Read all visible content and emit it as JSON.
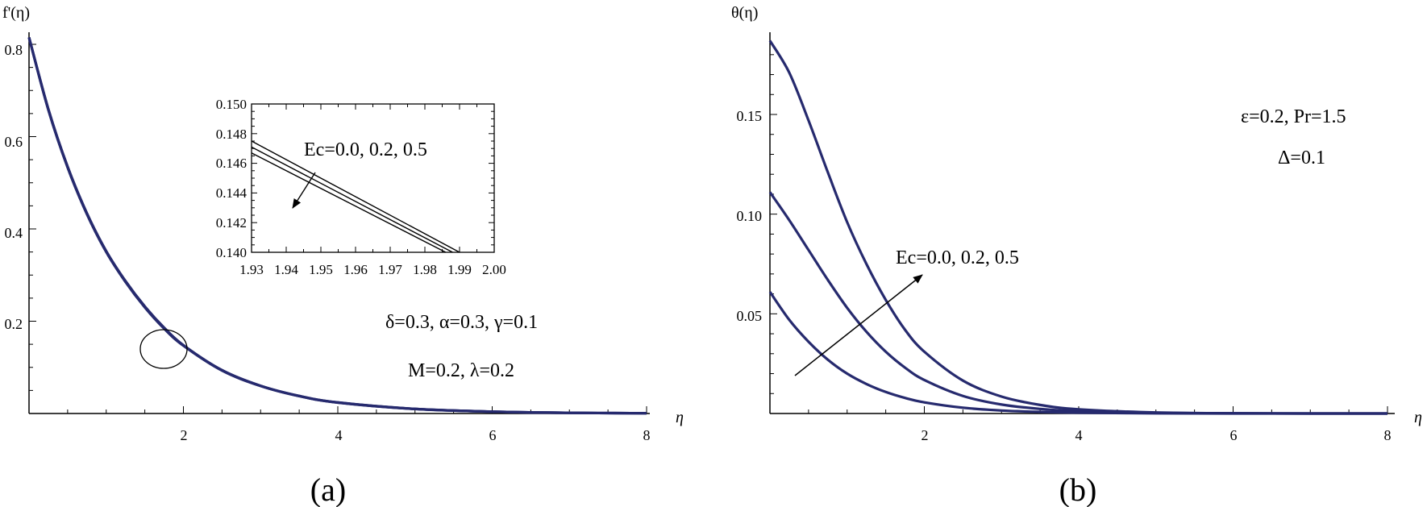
{
  "chart_data": [
    {
      "type": "line",
      "panel_label": "(a)",
      "ylabel": "f'(η)",
      "xlabel": "η",
      "xlim": [
        0,
        8
      ],
      "ylim": [
        0,
        0.83
      ],
      "x_ticks": [
        "2",
        "4",
        "6",
        "8"
      ],
      "y_ticks": [
        "0.2",
        "0.4",
        "0.6",
        "0.8"
      ],
      "series": [
        {
          "x": [
            0,
            0.25,
            0.5,
            0.75,
            1,
            1.25,
            1.5,
            1.75,
            2,
            2.5,
            3,
            3.5,
            4,
            5,
            6,
            7,
            8
          ],
          "y": [
            0.815,
            0.66,
            0.535,
            0.434,
            0.352,
            0.287,
            0.232,
            0.186,
            0.148,
            0.094,
            0.06,
            0.038,
            0.024,
            0.01,
            0.004,
            0.0015,
            0.0005
          ]
        },
        {
          "x": [
            0,
            0.25,
            0.5,
            0.75,
            1,
            1.25,
            1.5,
            1.75,
            2,
            2.5,
            3,
            3.5,
            4,
            5,
            6,
            7,
            8
          ],
          "y": [
            0.815,
            0.659,
            0.534,
            0.433,
            0.351,
            0.286,
            0.231,
            0.185,
            0.1475,
            0.0935,
            0.0598,
            0.0378,
            0.0238,
            0.0099,
            0.004,
            0.0015,
            0.0005
          ]
        },
        {
          "x": [
            0,
            0.25,
            0.5,
            0.75,
            1,
            1.25,
            1.5,
            1.75,
            2,
            2.5,
            3,
            3.5,
            4,
            5,
            6,
            7,
            8
          ],
          "y": [
            0.815,
            0.658,
            0.533,
            0.432,
            0.35,
            0.285,
            0.23,
            0.184,
            0.147,
            0.093,
            0.0596,
            0.0376,
            0.0236,
            0.0098,
            0.004,
            0.0015,
            0.0005
          ]
        }
      ],
      "annotations": [
        "δ=0.3, α=0.3, γ=0.1",
        "M=0.2, λ=0.2"
      ],
      "inset": {
        "xlim": [
          1.93,
          2.0
        ],
        "ylim": [
          0.14,
          0.15
        ],
        "x_ticks": [
          "1.93",
          "1.94",
          "1.95",
          "1.96",
          "1.97",
          "1.98",
          "1.99",
          "2.00"
        ],
        "y_ticks": [
          "0.140",
          "0.142",
          "0.144",
          "0.146",
          "0.148",
          "0.150"
        ],
        "label": "Ec=0.0, 0.2, 0.5",
        "series": [
          {
            "name": "Ec=0.0",
            "x": [
              1.93,
              1.99
            ],
            "y": [
              0.1475,
              0.14
            ]
          },
          {
            "name": "Ec=0.2",
            "x": [
              1.93,
              1.988
            ],
            "y": [
              0.1471,
              0.14
            ]
          },
          {
            "name": "Ec=0.5",
            "x": [
              1.93,
              1.986
            ],
            "y": [
              0.1467,
              0.14
            ]
          }
        ]
      }
    },
    {
      "type": "line",
      "panel_label": "(b)",
      "ylabel": "θ(η)",
      "xlabel": "η",
      "xlim": [
        0,
        8
      ],
      "ylim": [
        0,
        0.19
      ],
      "x_ticks": [
        "2",
        "4",
        "6",
        "8"
      ],
      "y_ticks": [
        "0.05",
        "0.10",
        "0.15"
      ],
      "series": [
        {
          "name": "Ec=0.0",
          "x": [
            0,
            0.25,
            0.5,
            0.75,
            1,
            1.25,
            1.5,
            1.75,
            2,
            2.5,
            3,
            3.5,
            4,
            5,
            6,
            7,
            8
          ],
          "y": [
            0.061,
            0.047,
            0.036,
            0.027,
            0.02,
            0.0148,
            0.0108,
            0.0078,
            0.0056,
            0.0029,
            0.0015,
            0.0008,
            0.0004,
            0.0001,
            0,
            0,
            0
          ]
        },
        {
          "name": "Ec=0.2",
          "x": [
            0,
            0.25,
            0.5,
            0.75,
            1,
            1.25,
            1.5,
            1.75,
            2,
            2.5,
            3,
            3.5,
            4,
            5,
            6,
            7,
            8
          ],
          "y": [
            0.111,
            0.097,
            0.082,
            0.067,
            0.053,
            0.041,
            0.031,
            0.023,
            0.0168,
            0.0088,
            0.0045,
            0.0023,
            0.0011,
            0.0003,
            0.0001,
            0,
            0
          ]
        },
        {
          "name": "Ec=0.5",
          "x": [
            0,
            0.25,
            0.5,
            0.75,
            1,
            1.25,
            1.5,
            1.75,
            2,
            2.5,
            3,
            3.5,
            4,
            5,
            6,
            7,
            8
          ],
          "y": [
            0.187,
            0.171,
            0.147,
            0.121,
            0.096,
            0.075,
            0.057,
            0.042,
            0.031,
            0.0165,
            0.0085,
            0.0043,
            0.0021,
            0.0005,
            0.0001,
            0,
            0
          ]
        }
      ],
      "annotations": [
        "ε=0.2, Pr=1.5",
        "Δ=0.1"
      ],
      "arrow_label": "Ec=0.0, 0.2, 0.5"
    }
  ]
}
